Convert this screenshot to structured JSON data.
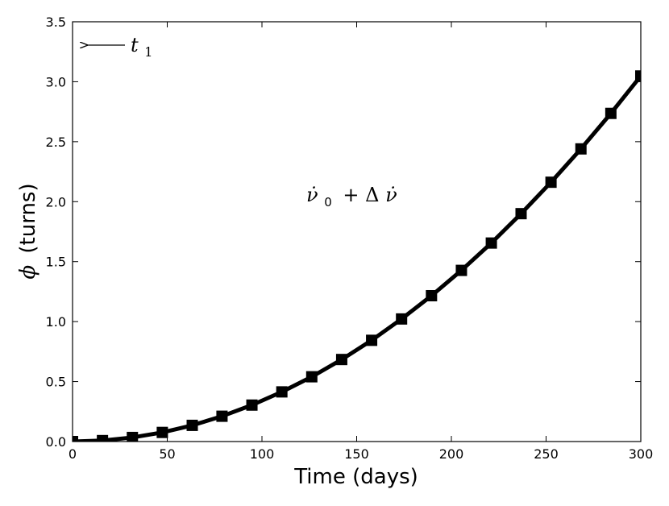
{
  "chart_data": {
    "type": "line",
    "title": "",
    "xlabel": "Time (days)",
    "ylabel_symbol": "ϕ",
    "ylabel_text": "(turns)",
    "xlim": [
      0,
      300
    ],
    "ylim": [
      0,
      3.5
    ],
    "xticks": [
      0,
      50,
      100,
      150,
      200,
      250,
      300
    ],
    "xtick_labels": [
      "0",
      "50",
      "100",
      "150",
      "200",
      "250",
      "300"
    ],
    "yticks": [
      0,
      0.5,
      1.0,
      1.5,
      2.0,
      2.5,
      3.0,
      3.5
    ],
    "ytick_labels": [
      "0.0",
      "0.5",
      "1.0",
      "1.5",
      "2.0",
      "2.5",
      "3.0",
      "3.5"
    ],
    "grid": false,
    "series": [
      {
        "color": "#000000",
        "marker": "square",
        "x": [
          0,
          15.8,
          31.6,
          47.4,
          63.2,
          78.9,
          94.7,
          110.5,
          126.3,
          142.1,
          157.9,
          173.7,
          189.5,
          205.3,
          221.1,
          236.8,
          252.6,
          268.4,
          284.2,
          300
        ],
        "y": [
          0.0,
          0.008,
          0.034,
          0.076,
          0.135,
          0.211,
          0.304,
          0.414,
          0.54,
          0.684,
          0.844,
          1.022,
          1.216,
          1.427,
          1.655,
          1.9,
          2.162,
          2.44,
          2.736,
          3.048
        ]
      }
    ],
    "annotations": {
      "arrow_label_var": "t",
      "arrow_label_sub": "1",
      "formula_nu": "ν̇",
      "formula_sub": "0",
      "formula_rest": "+ Δ",
      "formula_nu2": "ν̇"
    }
  }
}
